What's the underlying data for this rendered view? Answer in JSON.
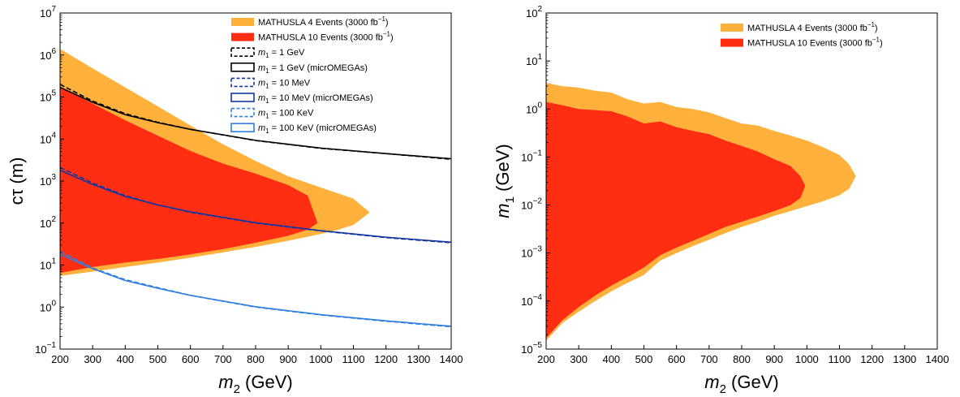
{
  "chart_data": [
    {
      "id": "left",
      "type": "area",
      "xlabel": "m2 (GeV)",
      "ylabel": "cτ (m)",
      "xlim": [
        200,
        1400
      ],
      "ylim": [
        0.1,
        10000000
      ],
      "yscale": "log",
      "grid": false,
      "legend_position": "top-right",
      "x_ticks": [
        200,
        300,
        400,
        500,
        600,
        700,
        800,
        900,
        1000,
        1100,
        1200,
        1300,
        1400
      ],
      "y_ticks": [
        {
          "value": 0.1,
          "base": "10",
          "exp": "−1"
        },
        {
          "value": 1,
          "base": "10",
          "exp": "0"
        },
        {
          "value": 10,
          "base": "10",
          "exp": "1"
        },
        {
          "value": 100,
          "base": "10",
          "exp": "2"
        },
        {
          "value": 1000,
          "base": "10",
          "exp": "3"
        },
        {
          "value": 10000,
          "base": "10",
          "exp": "4"
        },
        {
          "value": 100000,
          "base": "10",
          "exp": "5"
        },
        {
          "value": 1000000,
          "base": "10",
          "exp": "6"
        },
        {
          "value": 10000000,
          "base": "10",
          "exp": "7"
        }
      ],
      "regions": [
        {
          "name": "MATHUSLA 4 Events (3000 fb−1)",
          "color": "#FFB13B",
          "upper": [
            [
              200,
              1400000
            ],
            [
              300,
              480000
            ],
            [
              400,
              170000
            ],
            [
              500,
              60000
            ],
            [
              600,
              21000
            ],
            [
              700,
              7500
            ],
            [
              800,
              3000
            ],
            [
              900,
              1300
            ],
            [
              1000,
              700
            ],
            [
              1050,
              520
            ],
            [
              1100,
              380
            ],
            [
              1150,
              180
            ]
          ],
          "lower": [
            [
              200,
              5.5
            ],
            [
              300,
              7
            ],
            [
              400,
              9
            ],
            [
              500,
              11.5
            ],
            [
              600,
              15
            ],
            [
              700,
              20
            ],
            [
              800,
              27
            ],
            [
              900,
              38
            ],
            [
              1000,
              55
            ],
            [
              1050,
              68
            ],
            [
              1100,
              90
            ],
            [
              1150,
              180
            ]
          ]
        },
        {
          "name": "MATHUSLA 10 Events (3000 fb−1)",
          "color": "#FF2D12",
          "upper": [
            [
              200,
              170000
            ],
            [
              300,
              70000
            ],
            [
              400,
              28000
            ],
            [
              500,
              12000
            ],
            [
              600,
              5200
            ],
            [
              700,
              2600
            ],
            [
              800,
              1500
            ],
            [
              900,
              800
            ],
            [
              960,
              450
            ],
            [
              990,
              100
            ]
          ],
          "lower": [
            [
              200,
              6.5
            ],
            [
              300,
              9
            ],
            [
              400,
              11.5
            ],
            [
              500,
              14
            ],
            [
              600,
              18
            ],
            [
              700,
              24
            ],
            [
              800,
              34
            ],
            [
              900,
              50
            ],
            [
              960,
              70
            ],
            [
              990,
              100
            ]
          ]
        }
      ],
      "series": [
        {
          "name": "m1 = 1 GeV",
          "color": "#000000",
          "style": "dashed",
          "points": [
            [
              200,
              200000
            ],
            [
              300,
              80000
            ],
            [
              400,
              40000
            ],
            [
              500,
              25000
            ],
            [
              600,
              17000
            ],
            [
              800,
              9200
            ],
            [
              1000,
              6000
            ],
            [
              1200,
              4500
            ],
            [
              1400,
              3300
            ]
          ]
        },
        {
          "name": "m1 = 1 GeV (micrOMEGAs)",
          "color": "#000000",
          "style": "solid",
          "points": [
            [
              200,
              170000
            ],
            [
              300,
              75000
            ],
            [
              400,
              38000
            ],
            [
              500,
              24500
            ],
            [
              600,
              17000
            ],
            [
              800,
              9300
            ],
            [
              1000,
              6100
            ],
            [
              1200,
              4500
            ],
            [
              1400,
              3400
            ]
          ]
        },
        {
          "name": "m1 = 10 MeV",
          "color": "#1436A0",
          "style": "dashed",
          "points": [
            [
              200,
              2100
            ],
            [
              300,
              900
            ],
            [
              400,
              450
            ],
            [
              500,
              270
            ],
            [
              600,
              180
            ],
            [
              800,
              100
            ],
            [
              1000,
              65
            ],
            [
              1200,
              45
            ],
            [
              1400,
              34
            ]
          ]
        },
        {
          "name": "m1 = 10 MeV (micrOMEGAs)",
          "color": "#1436A0",
          "style": "solid",
          "points": [
            [
              200,
              1800
            ],
            [
              300,
              830
            ],
            [
              400,
              430
            ],
            [
              500,
              270
            ],
            [
              600,
              185
            ],
            [
              800,
              102
            ],
            [
              1000,
              66
            ],
            [
              1200,
              46
            ],
            [
              1400,
              35
            ]
          ]
        },
        {
          "name": "m1 = 100 KeV",
          "color": "#2F7FE0",
          "style": "dashed",
          "points": [
            [
              200,
              21
            ],
            [
              300,
              8.5
            ],
            [
              400,
              4.5
            ],
            [
              500,
              2.9
            ],
            [
              600,
              1.9
            ],
            [
              800,
              1.0
            ],
            [
              1000,
              0.65
            ],
            [
              1200,
              0.46
            ],
            [
              1400,
              0.34
            ]
          ]
        },
        {
          "name": "m1 = 100 KeV (micrOMEGAs)",
          "color": "#2F7FE0",
          "style": "solid",
          "points": [
            [
              200,
              18
            ],
            [
              300,
              8.2
            ],
            [
              400,
              4.3
            ],
            [
              500,
              2.8
            ],
            [
              600,
              1.9
            ],
            [
              800,
              1.02
            ],
            [
              1000,
              0.66
            ],
            [
              1200,
              0.47
            ],
            [
              1400,
              0.35
            ]
          ]
        }
      ],
      "legend": [
        {
          "kind": "fill",
          "color": "#FFB13B",
          "prefix": "MATHUSLA 4 Events (3000 fb",
          "sup": "−1",
          "suffix": ")"
        },
        {
          "kind": "fill",
          "color": "#FF2D12",
          "prefix": "MATHUSLA 10 Events (3000 fb",
          "sup": "−1",
          "suffix": ")"
        },
        {
          "kind": "dashed",
          "color": "#000000",
          "italic": "m",
          "sub": "1",
          "rest": " = 1 GeV"
        },
        {
          "kind": "solid",
          "color": "#000000",
          "italic": "m",
          "sub": "1",
          "rest": " = 1 GeV (micrOMEGAs)"
        },
        {
          "kind": "dashed",
          "color": "#1436A0",
          "italic": "m",
          "sub": "1",
          "rest": " = 10 MeV"
        },
        {
          "kind": "solid",
          "color": "#1436A0",
          "italic": "m",
          "sub": "1",
          "rest": " = 10 MeV (micrOMEGAs)"
        },
        {
          "kind": "dashed",
          "color": "#2F7FE0",
          "italic": "m",
          "sub": "1",
          "rest": " = 100 KeV"
        },
        {
          "kind": "solid",
          "color": "#2F7FE0",
          "italic": "m",
          "sub": "1",
          "rest": " = 100 KeV (micrOMEGAs)"
        }
      ],
      "xlabel_parts": {
        "italic": "m",
        "sub": "2",
        "rest": " (GeV)"
      },
      "ylabel_parts": {
        "text": "cτ (m)"
      }
    },
    {
      "id": "right",
      "type": "area",
      "xlabel": "m2 (GeV)",
      "ylabel": "m1 (GeV)",
      "xlim": [
        200,
        1400
      ],
      "ylim": [
        1e-05,
        100
      ],
      "yscale": "log",
      "grid": false,
      "legend_position": "top-right",
      "x_ticks": [
        200,
        300,
        400,
        500,
        600,
        700,
        800,
        900,
        1000,
        1100,
        1200,
        1300,
        1400
      ],
      "y_ticks": [
        {
          "value": 1e-05,
          "base": "10",
          "exp": "−5"
        },
        {
          "value": 0.0001,
          "base": "10",
          "exp": "−4"
        },
        {
          "value": 0.001,
          "base": "10",
          "exp": "−3"
        },
        {
          "value": 0.01,
          "base": "10",
          "exp": "−2"
        },
        {
          "value": 0.1,
          "base": "10",
          "exp": "−1"
        },
        {
          "value": 1,
          "base": "10",
          "exp": "0"
        },
        {
          "value": 10,
          "base": "10",
          "exp": "1"
        },
        {
          "value": 100,
          "base": "10",
          "exp": "2"
        }
      ],
      "regions": [
        {
          "name": "MATHUSLA 4 Events (3000 fb−1)",
          "color": "#FFB13B",
          "upper": [
            [
              200,
              3.5
            ],
            [
              250,
              3.0
            ],
            [
              300,
              2.8
            ],
            [
              350,
              2.4
            ],
            [
              400,
              2.2
            ],
            [
              450,
              1.6
            ],
            [
              500,
              1.3
            ],
            [
              550,
              1.4
            ],
            [
              600,
              1.1
            ],
            [
              650,
              1.0
            ],
            [
              700,
              0.85
            ],
            [
              750,
              0.65
            ],
            [
              800,
              0.5
            ],
            [
              850,
              0.45
            ],
            [
              900,
              0.35
            ],
            [
              950,
              0.28
            ],
            [
              1000,
              0.22
            ],
            [
              1050,
              0.16
            ],
            [
              1100,
              0.11
            ],
            [
              1130,
              0.07
            ],
            [
              1150,
              0.04
            ]
          ],
          "lower": [
            [
              200,
              1.5e-05
            ],
            [
              250,
              3.5e-05
            ],
            [
              300,
              6e-05
            ],
            [
              350,
              0.0001
            ],
            [
              400,
              0.00016
            ],
            [
              450,
              0.00024
            ],
            [
              500,
              0.00035
            ],
            [
              550,
              0.0007
            ],
            [
              600,
              0.001
            ],
            [
              650,
              0.0014
            ],
            [
              700,
              0.0019
            ],
            [
              750,
              0.0026
            ],
            [
              800,
              0.0035
            ],
            [
              850,
              0.0045
            ],
            [
              900,
              0.006
            ],
            [
              950,
              0.0075
            ],
            [
              1000,
              0.0095
            ],
            [
              1050,
              0.012
            ],
            [
              1100,
              0.016
            ],
            [
              1130,
              0.022
            ],
            [
              1150,
              0.04
            ]
          ]
        },
        {
          "name": "MATHUSLA 10 Events (3000 fb−1)",
          "color": "#FF2D12",
          "upper": [
            [
              200,
              1.4
            ],
            [
              250,
              1.2
            ],
            [
              300,
              1.0
            ],
            [
              350,
              0.95
            ],
            [
              400,
              0.9
            ],
            [
              450,
              0.7
            ],
            [
              500,
              0.5
            ],
            [
              550,
              0.55
            ],
            [
              600,
              0.42
            ],
            [
              650,
              0.35
            ],
            [
              700,
              0.3
            ],
            [
              750,
              0.22
            ],
            [
              800,
              0.17
            ],
            [
              850,
              0.13
            ],
            [
              900,
              0.09
            ],
            [
              950,
              0.065
            ],
            [
              980,
              0.04
            ],
            [
              995,
              0.025
            ]
          ],
          "lower": [
            [
              200,
              1.7e-05
            ],
            [
              250,
              4e-05
            ],
            [
              300,
              7.5e-05
            ],
            [
              350,
              0.00013
            ],
            [
              400,
              0.00021
            ],
            [
              450,
              0.00032
            ],
            [
              500,
              0.0005
            ],
            [
              550,
              0.0009
            ],
            [
              600,
              0.0013
            ],
            [
              650,
              0.0018
            ],
            [
              700,
              0.0025
            ],
            [
              750,
              0.0035
            ],
            [
              800,
              0.0045
            ],
            [
              850,
              0.0058
            ],
            [
              900,
              0.0075
            ],
            [
              950,
              0.01
            ],
            [
              980,
              0.014
            ],
            [
              995,
              0.025
            ]
          ]
        }
      ],
      "series": [],
      "legend": [
        {
          "kind": "fill",
          "color": "#FFB13B",
          "prefix": "MATHUSLA 4 Events (3000 fb",
          "sup": "−1",
          "suffix": ")"
        },
        {
          "kind": "fill",
          "color": "#FF2D12",
          "prefix": "MATHUSLA 10 Events (3000 fb",
          "sup": "−1",
          "suffix": ")"
        }
      ],
      "xlabel_parts": {
        "italic": "m",
        "sub": "2",
        "rest": " (GeV)"
      },
      "ylabel_parts": {
        "italic": "m",
        "sub": "1",
        "rest": " (GeV)"
      }
    }
  ]
}
